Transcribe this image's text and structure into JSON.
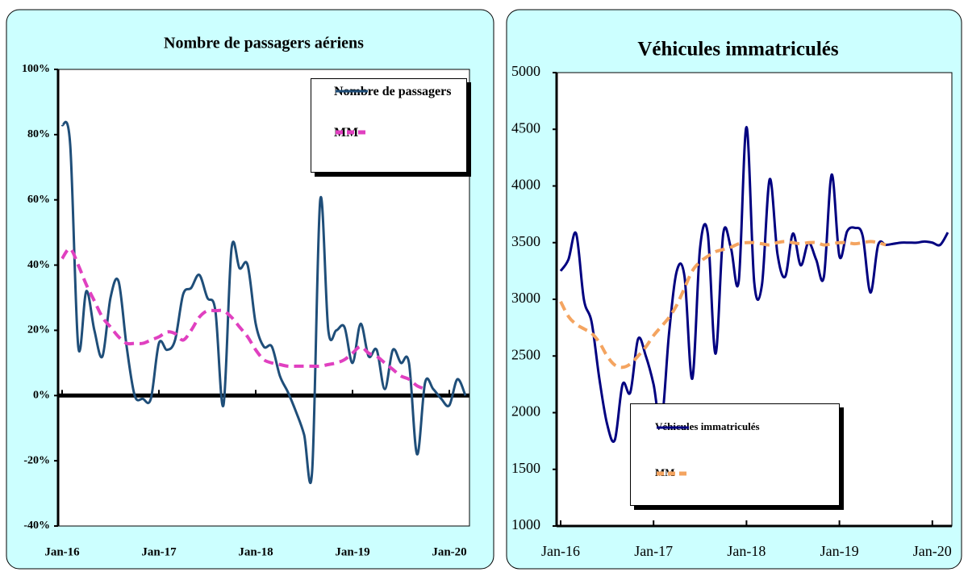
{
  "chart_data": [
    {
      "type": "line",
      "title": "Nombre de passagers aériens",
      "categories": [
        "Jan-16",
        null,
        null,
        null,
        null,
        null,
        null,
        null,
        null,
        null,
        null,
        null,
        "Jan-17",
        null,
        null,
        null,
        null,
        null,
        null,
        null,
        null,
        null,
        null,
        null,
        "Jan-18",
        null,
        null,
        null,
        null,
        null,
        null,
        null,
        null,
        null,
        null,
        null,
        "Jan-19",
        null,
        null,
        null,
        null,
        null,
        null,
        null,
        null,
        null,
        null,
        null,
        "Jan-20",
        null,
        null
      ],
      "series": [
        {
          "name": "Nombre de passagers",
          "color": "#1f4e79",
          "style": "solid",
          "values": [
            83,
            77,
            15,
            32,
            20,
            12,
            30,
            35,
            15,
            0,
            -1,
            -1,
            16,
            14,
            17,
            31,
            33,
            37,
            30,
            26,
            -3,
            45,
            39,
            40,
            22,
            15,
            15,
            6,
            1,
            -5,
            -12,
            -23,
            60,
            20,
            20,
            21,
            10,
            22,
            12,
            14,
            2,
            14,
            10,
            10,
            -18,
            4,
            2,
            -1,
            -3,
            5,
            0
          ]
        },
        {
          "name": "MM",
          "color": "#e040c0",
          "style": "dashed",
          "values": [
            42,
            45,
            40,
            34,
            29,
            24,
            21,
            18,
            16,
            16,
            16,
            17,
            18,
            19.5,
            19,
            17,
            20,
            24,
            26,
            26,
            26,
            24,
            21,
            18,
            14,
            11,
            10,
            9.5,
            9,
            9,
            9,
            9,
            9,
            9.5,
            10,
            11,
            13,
            15,
            13,
            12,
            10,
            8,
            6,
            5,
            3,
            2,
            null,
            null,
            null,
            null,
            null
          ]
        }
      ],
      "ylim": [
        -40,
        100
      ],
      "yticks": [
        {
          "value": -40,
          "label": "-40%"
        },
        {
          "value": -20,
          "label": "-20%"
        },
        {
          "value": 0,
          "label": "0%"
        },
        {
          "value": 20,
          "label": "20%"
        },
        {
          "value": 40,
          "label": "40%"
        },
        {
          "value": 60,
          "label": "60%"
        },
        {
          "value": 80,
          "label": "80%"
        },
        {
          "value": 100,
          "label": "100%"
        }
      ],
      "legend": "upper right"
    },
    {
      "type": "line",
      "title": "Véhicules immatriculés",
      "categories": [
        "Jan-16",
        null,
        null,
        null,
        null,
        null,
        null,
        null,
        null,
        null,
        null,
        null,
        "Jan-17",
        null,
        null,
        null,
        null,
        null,
        null,
        null,
        null,
        null,
        null,
        null,
        "Jan-18",
        null,
        null,
        null,
        null,
        null,
        null,
        null,
        null,
        null,
        null,
        null,
        "Jan-19",
        null,
        null,
        null,
        null,
        null,
        null,
        null,
        null,
        null,
        null,
        null,
        "Jan-20",
        null,
        null
      ],
      "series": [
        {
          "name": "Véhicules immatriculés",
          "color": "#000080",
          "style": "solid",
          "values": [
            3250,
            3350,
            3580,
            3000,
            2800,
            2300,
            1900,
            1760,
            2250,
            2180,
            2650,
            2500,
            2250,
            1900,
            2700,
            3250,
            3200,
            2300,
            3450,
            3580,
            2520,
            3580,
            3450,
            3160,
            4520,
            3150,
            3130,
            4060,
            3400,
            3200,
            3580,
            3300,
            3500,
            3350,
            3200,
            4100,
            3380,
            3600,
            3630,
            3560,
            3060,
            3480,
            3480,
            3490,
            3500,
            3500,
            3500,
            3510,
            3500,
            3480,
            3590
          ]
        },
        {
          "name": "MM",
          "color": "#f4a460",
          "style": "dashed",
          "values": [
            2980,
            2850,
            2780,
            2740,
            2700,
            2620,
            2500,
            2420,
            2400,
            2430,
            2500,
            2580,
            2680,
            2760,
            2840,
            2950,
            3100,
            3250,
            3330,
            3380,
            3420,
            3440,
            3460,
            3490,
            3500,
            3500,
            3490,
            3480,
            3500,
            3510,
            3500,
            3490,
            3500,
            3500,
            3480,
            3490,
            3500,
            3500,
            3490,
            3500,
            3510,
            3500,
            3480,
            null,
            null,
            null,
            null,
            null,
            null,
            null,
            null
          ]
        }
      ],
      "ylim": [
        1000,
        5000
      ],
      "yticks": [
        1000,
        1500,
        2000,
        2500,
        3000,
        3500,
        4000,
        4500,
        5000
      ],
      "legend": "lower center"
    }
  ]
}
